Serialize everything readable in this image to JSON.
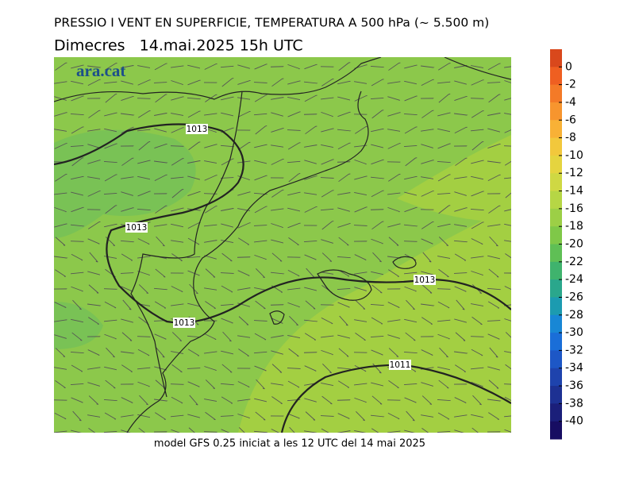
{
  "header": {
    "title": "PRESSIO I VENT EN SUPERFICIE, TEMPERATURA A 500 hPa (~ 5.500 m)",
    "subtitle": "Dimecres   14.mai.2025 15h UTC"
  },
  "map": {
    "logo": "ara.cat",
    "isobars": [
      "1013",
      "1013",
      "1013",
      "1011"
    ],
    "footer": "model GFS 0.25 iniciat a les 12 UTC del 14 mai 2025"
  },
  "colorbar": {
    "lim": [
      -42,
      2
    ],
    "ticks": [
      0,
      -2,
      -4,
      -6,
      -8,
      -10,
      -12,
      -14,
      -16,
      -18,
      -20,
      -22,
      -24,
      -26,
      -28,
      -30,
      -32,
      -34,
      -36,
      -38,
      -40
    ],
    "colors": [
      "#d9481c",
      "#ef5f21",
      "#f47a27",
      "#f7952e",
      "#f8b136",
      "#f2c83c",
      "#e5d43f",
      "#cfd843",
      "#b6d645",
      "#9ccf46",
      "#7fc848",
      "#5fbf55",
      "#3fb36d",
      "#2aa78c",
      "#1c9bb0",
      "#1887d5",
      "#1a6ed8",
      "#1d57c6",
      "#1e43ad",
      "#1d3193",
      "#1b1f7a",
      "#170d62"
    ]
  }
}
